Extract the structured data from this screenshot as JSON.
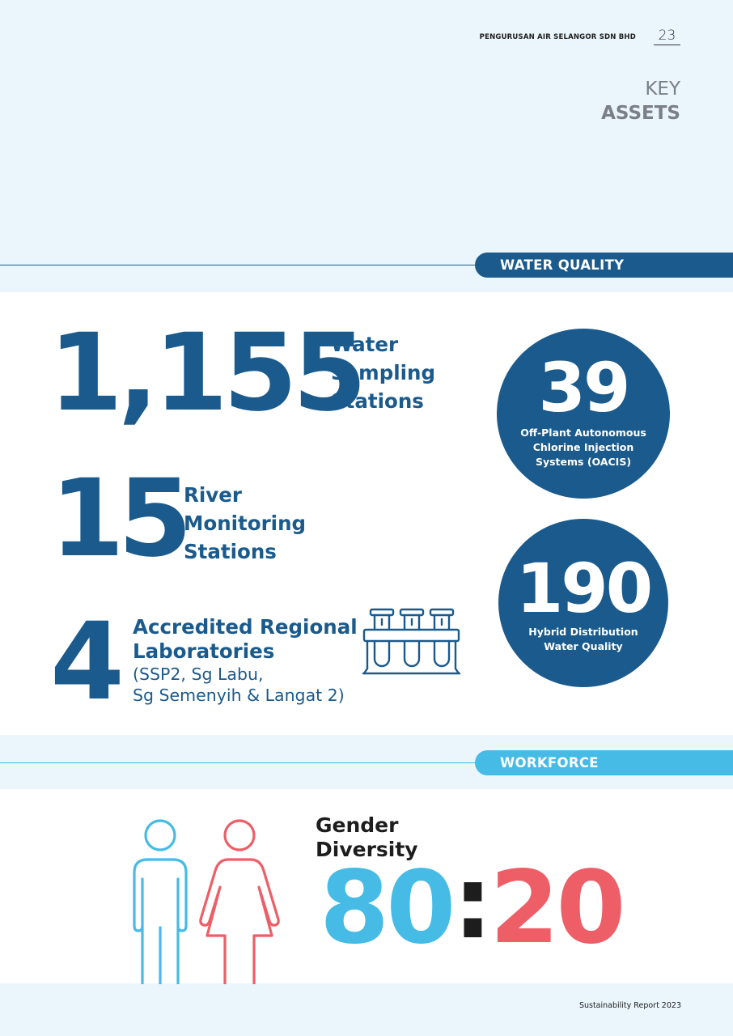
{
  "header": {
    "company": "PENGURUSAN AIR SELANGOR SDN BHD",
    "page_number": "23",
    "title_line1": "KEY",
    "title_line2": "ASSETS"
  },
  "water_quality": {
    "section_label": "WATER QUALITY",
    "sampling": {
      "value": "1,155",
      "line1": "Water",
      "line2": "Sampling",
      "line3": "Stations"
    },
    "river": {
      "value": "15",
      "line1": "River",
      "line2": "Monitoring",
      "line3": "Stations"
    },
    "labs": {
      "value": "4",
      "line1": "Accredited Regional",
      "line2": "Laboratories",
      "detail1": "(SSP2, Sg Labu,",
      "detail2": "Sg Semenyih & Langat 2)",
      "icon": "test-tubes-icon"
    },
    "oacis": {
      "value": "39",
      "line1": "Off-Plant Autonomous",
      "line2": "Chlorine Injection",
      "line3": "Systems (OACIS)"
    },
    "hybrid": {
      "value": "190",
      "line1": "Hybrid Distribution",
      "line2": "Water Quality"
    }
  },
  "workforce": {
    "section_label": "WORKFORCE",
    "gender_label1": "Gender",
    "gender_label2": "Diversity",
    "male_share": "80",
    "separator": ":",
    "female_share": "20",
    "male_icon": "male-figure-icon",
    "female_icon": "female-figure-icon"
  },
  "footer": {
    "text": "Sustainability Report 2023"
  },
  "colors": {
    "navy": "#1b5a8c",
    "light_blue": "#45bbe5",
    "coral": "#ee5e67",
    "background": "#eaf6fc"
  }
}
